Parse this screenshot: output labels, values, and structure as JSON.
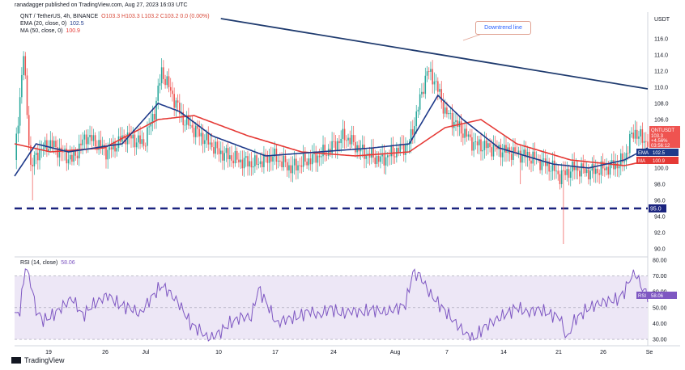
{
  "header": {
    "publisher": "ranadagger published on TradingView.com, Aug 27, 2023 16:03 UTC",
    "symbol_line": "QNT / TetherUS, 4h, BINANCE",
    "ohlc": "O103.3 H103.3 L103.2 C103.2 0.0 (0.00%)",
    "ema_label": "EMA (20, close, 0)",
    "ema_value": "102.5",
    "ma_label": "MA (50, close, 0)",
    "ma_value": "100.9",
    "rsi_label": "RSI (14, close)",
    "rsi_value": "58.06",
    "currency": "USDT",
    "logo_text": "TradingView"
  },
  "annotation": {
    "downtrend": "Downtrend line",
    "support_label": "95.0"
  },
  "price_tags": {
    "symbol": "QNTUSDT",
    "price": "103.3",
    "change": "+4.56%",
    "countdown": "03:56:12",
    "ema_tag": "EMA",
    "ema": "102.5",
    "ma_tag": "MA",
    "ma": "100.9",
    "rsi_tag": "RSI",
    "rsi": "58.06"
  },
  "colors": {
    "up": "#26a69a",
    "down": "#ef5350",
    "ema": "#1e3a8a",
    "ma": "#e53935",
    "trendline": "#1e3a6e",
    "support": "#1a237e",
    "rsi_line": "#7e57c2",
    "rsi_band": "#ede7f6"
  },
  "chart_data": [
    {
      "type": "candlestick",
      "ylim": [
        89,
        118
      ],
      "y_ticks": [
        "116.0",
        "114.0",
        "112.0",
        "110.0",
        "108.0",
        "106.0",
        "104.0",
        "102.0",
        "100.0",
        "98.0",
        "96.0",
        "94.0",
        "92.0",
        "90.0"
      ],
      "x_ticks": [
        "19",
        "26",
        "Jul",
        "10",
        "17",
        "24",
        "Aug",
        "7",
        "14",
        "21",
        "26",
        "Se"
      ],
      "close_points": [
        [
          0,
          101
        ],
        [
          5,
          114
        ],
        [
          9,
          100
        ],
        [
          13,
          102
        ],
        [
          20,
          103
        ],
        [
          32,
          101
        ],
        [
          40,
          104
        ],
        [
          52,
          102
        ],
        [
          62,
          104
        ],
        [
          72,
          103
        ],
        [
          78,
          107
        ],
        [
          82,
          112
        ],
        [
          86,
          110
        ],
        [
          94,
          106
        ],
        [
          104,
          104
        ],
        [
          114,
          102
        ],
        [
          124,
          101
        ],
        [
          134,
          100.5
        ],
        [
          144,
          101.5
        ],
        [
          154,
          100
        ],
        [
          164,
          101
        ],
        [
          174,
          102
        ],
        [
          184,
          104
        ],
        [
          194,
          102
        ],
        [
          204,
          101
        ],
        [
          212,
          102
        ],
        [
          220,
          103
        ],
        [
          230,
          112
        ],
        [
          234,
          111
        ],
        [
          240,
          107
        ],
        [
          248,
          105
        ],
        [
          256,
          103
        ],
        [
          266,
          102.5
        ],
        [
          276,
          102
        ],
        [
          286,
          101.5
        ],
        [
          296,
          100.5
        ],
        [
          300,
          100
        ],
        [
          304,
          99
        ],
        [
          312,
          100
        ],
        [
          320,
          99.5
        ],
        [
          330,
          100
        ],
        [
          336,
          100.5
        ],
        [
          340,
          101
        ],
        [
          343,
          103.5
        ],
        [
          346,
          104.5
        ],
        [
          350,
          103.5
        ],
        [
          353,
          103.3
        ]
      ],
      "lows_marked": [
        [
          282,
          98
        ],
        [
          306,
          90.6
        ],
        [
          10,
          96
        ]
      ],
      "ema_points": [
        [
          0,
          99
        ],
        [
          12,
          103
        ],
        [
          30,
          102
        ],
        [
          60,
          103
        ],
        [
          80,
          108
        ],
        [
          92,
          107
        ],
        [
          110,
          104
        ],
        [
          140,
          101.5
        ],
        [
          170,
          102
        ],
        [
          200,
          102.5
        ],
        [
          220,
          103
        ],
        [
          236,
          109
        ],
        [
          250,
          106
        ],
        [
          270,
          102.5
        ],
        [
          300,
          100.5
        ],
        [
          320,
          100
        ],
        [
          340,
          101
        ],
        [
          353,
          102.5
        ]
      ],
      "ma_points": [
        [
          0,
          103
        ],
        [
          20,
          102
        ],
        [
          50,
          102.5
        ],
        [
          80,
          106
        ],
        [
          100,
          106.5
        ],
        [
          130,
          104
        ],
        [
          160,
          102
        ],
        [
          190,
          101.5
        ],
        [
          220,
          102
        ],
        [
          240,
          105
        ],
        [
          260,
          106
        ],
        [
          280,
          103
        ],
        [
          310,
          101
        ],
        [
          340,
          100.3
        ],
        [
          353,
          100.9
        ]
      ],
      "downtrend_line": [
        [
          115,
          118.5
        ],
        [
          353,
          109.8
        ]
      ],
      "support_level": 95.0
    },
    {
      "type": "line",
      "title": "RSI (14, close)",
      "ylim": [
        28,
        82
      ],
      "y_ticks": [
        "80.00",
        "70.00",
        "60.00",
        "50.00",
        "40.00",
        "30.00"
      ],
      "band": [
        30,
        70
      ],
      "points": [
        [
          0,
          45
        ],
        [
          3,
          48
        ],
        [
          6,
          76
        ],
        [
          9,
          66
        ],
        [
          12,
          48
        ],
        [
          16,
          42
        ],
        [
          20,
          44
        ],
        [
          26,
          50
        ],
        [
          32,
          56
        ],
        [
          38,
          45
        ],
        [
          44,
          52
        ],
        [
          52,
          58
        ],
        [
          58,
          52
        ],
        [
          64,
          50
        ],
        [
          70,
          46
        ],
        [
          76,
          56
        ],
        [
          82,
          64
        ],
        [
          86,
          60
        ],
        [
          92,
          52
        ],
        [
          98,
          40
        ],
        [
          104,
          35
        ],
        [
          108,
          30
        ],
        [
          114,
          34
        ],
        [
          120,
          40
        ],
        [
          126,
          44
        ],
        [
          132,
          44
        ],
        [
          136,
          62
        ],
        [
          140,
          54
        ],
        [
          146,
          40
        ],
        [
          152,
          43
        ],
        [
          158,
          44
        ],
        [
          164,
          48
        ],
        [
          170,
          45
        ],
        [
          176,
          50
        ],
        [
          182,
          46
        ],
        [
          188,
          48
        ],
        [
          194,
          47
        ],
        [
          200,
          49
        ],
        [
          206,
          47
        ],
        [
          212,
          49
        ],
        [
          218,
          52
        ],
        [
          222,
          72
        ],
        [
          226,
          70
        ],
        [
          232,
          58
        ],
        [
          240,
          48
        ],
        [
          246,
          40
        ],
        [
          252,
          33
        ],
        [
          256,
          30
        ],
        [
          262,
          38
        ],
        [
          268,
          42
        ],
        [
          274,
          46
        ],
        [
          280,
          50
        ],
        [
          286,
          47
        ],
        [
          292,
          49
        ],
        [
          298,
          46
        ],
        [
          304,
          44
        ],
        [
          308,
          30
        ],
        [
          312,
          42
        ],
        [
          318,
          48
        ],
        [
          324,
          52
        ],
        [
          330,
          54
        ],
        [
          336,
          55
        ],
        [
          340,
          60
        ],
        [
          343,
          68
        ],
        [
          346,
          72
        ],
        [
          350,
          62
        ],
        [
          353,
          58.06
        ]
      ]
    }
  ]
}
